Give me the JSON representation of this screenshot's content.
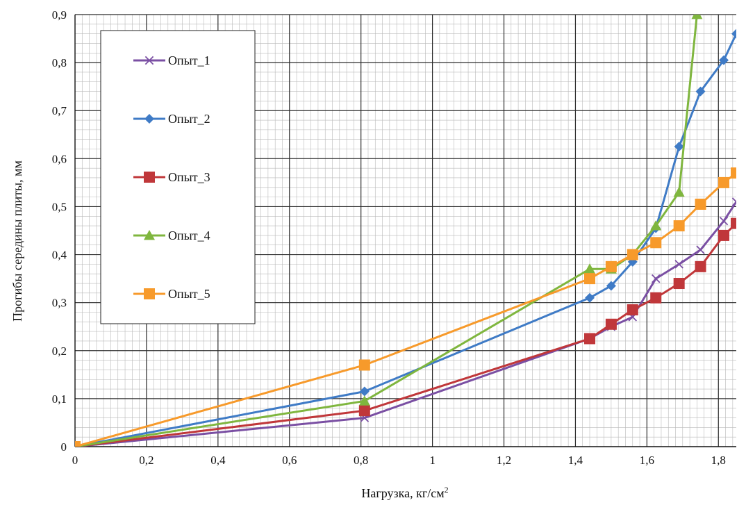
{
  "chart_data": {
    "type": "line",
    "xlabel": "Нагрузка,  кг/см",
    "xlabel_sup": "2",
    "ylabel": "Прогибы середины плиты, мм",
    "xlim": [
      0,
      1.85
    ],
    "ylim": [
      0,
      0.9
    ],
    "x_ticks": [
      "0",
      "0,2",
      "0,4",
      "0,6",
      "0,8",
      "1",
      "1,2",
      "1,4",
      "1,6",
      "1,8"
    ],
    "y_ticks": [
      "0",
      "0,1",
      "0,2",
      "0,3",
      "0,4",
      "0,5",
      "0,6",
      "0,7",
      "0,8",
      "0,9"
    ],
    "grid": true,
    "legend_position": "upper-left",
    "series": [
      {
        "name": "Опыт_1",
        "color": "#7a4fa3",
        "marker": "x",
        "x": [
          0,
          0.81,
          1.44,
          1.5,
          1.56,
          1.625,
          1.69,
          1.75,
          1.815,
          1.85
        ],
        "y": [
          0,
          0.06,
          0.225,
          0.25,
          0.27,
          0.35,
          0.38,
          0.41,
          0.47,
          0.51
        ]
      },
      {
        "name": "Опыт_2",
        "color": "#3f7bc6",
        "marker": "diamond",
        "x": [
          0,
          0.81,
          1.44,
          1.5,
          1.56,
          1.625,
          1.69,
          1.75,
          1.815,
          1.85
        ],
        "y": [
          0,
          0.115,
          0.31,
          0.335,
          0.385,
          0.455,
          0.625,
          0.74,
          0.805,
          0.86
        ]
      },
      {
        "name": "Опыт_3",
        "color": "#c0373a",
        "marker": "square",
        "x": [
          0,
          0.81,
          1.44,
          1.5,
          1.56,
          1.625,
          1.69,
          1.75,
          1.815,
          1.85
        ],
        "y": [
          0,
          0.075,
          0.225,
          0.255,
          0.285,
          0.31,
          0.34,
          0.375,
          0.44,
          0.465
        ]
      },
      {
        "name": "Опыт_4",
        "color": "#7fb63e",
        "marker": "triangle",
        "x": [
          0,
          0.81,
          1.44,
          1.5,
          1.56,
          1.625,
          1.69,
          1.74
        ],
        "y": [
          0,
          0.095,
          0.37,
          0.37,
          0.4,
          0.46,
          0.53,
          0.9
        ]
      },
      {
        "name": "Опыт_5",
        "color": "#f79a2b",
        "marker": "square",
        "x": [
          0,
          0.81,
          1.44,
          1.5,
          1.56,
          1.625,
          1.69,
          1.75,
          1.815,
          1.85
        ],
        "y": [
          0,
          0.17,
          0.35,
          0.375,
          0.4,
          0.425,
          0.46,
          0.505,
          0.55,
          0.57
        ]
      }
    ]
  }
}
